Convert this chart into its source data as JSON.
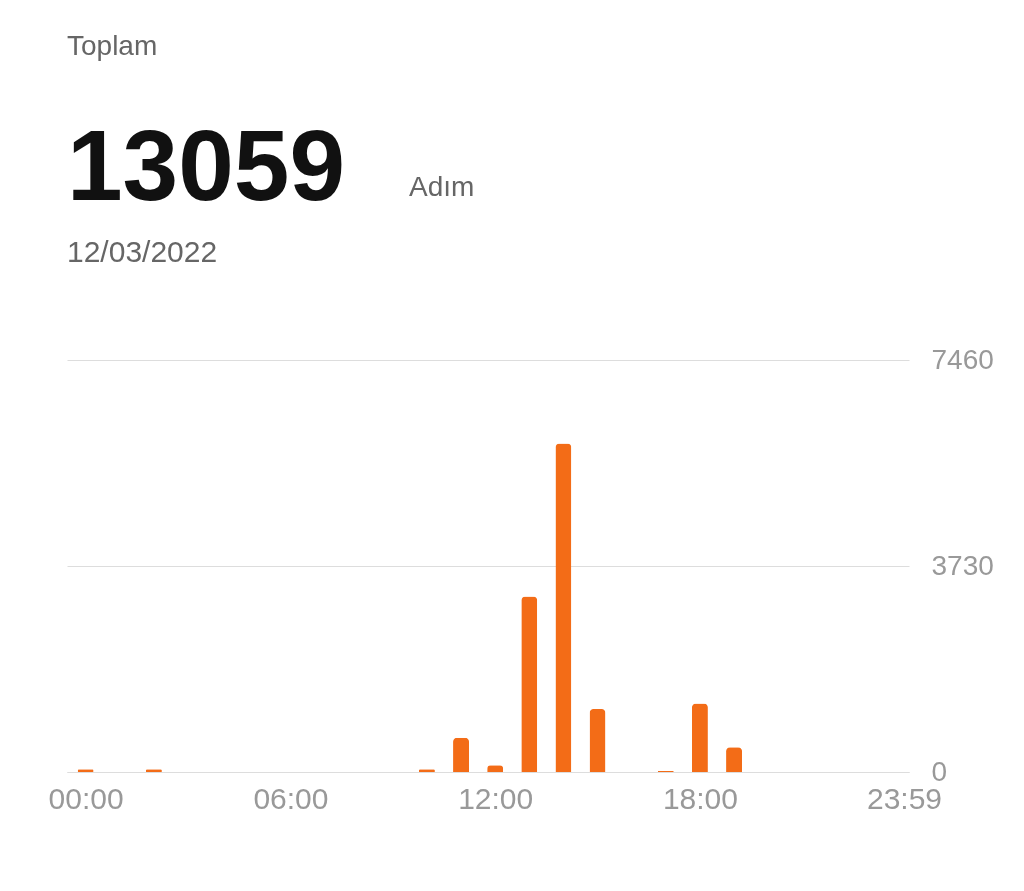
{
  "chart_data": {
    "type": "bar",
    "title": "Toplam",
    "annotations": [
      "13059",
      "Adım",
      "12/03/2022"
    ],
    "x": [
      0,
      2,
      10,
      11,
      12,
      13,
      14,
      15,
      17,
      18,
      19
    ],
    "series": [
      {
        "color": "#f36c17",
        "values": [
          50,
          50,
          50,
          620,
          120,
          3180,
          5950,
          1140,
          20,
          1240,
          450
        ]
      }
    ],
    "xlim": [
      -0.4,
      23.98
    ],
    "xticks": [
      {
        "value": 0,
        "label": "00:00"
      },
      {
        "value": 6,
        "label": "06:00"
      },
      {
        "value": 12,
        "label": "12:00"
      },
      {
        "value": 18,
        "label": "18:00"
      },
      {
        "value": 23.98,
        "label": "23:59"
      }
    ],
    "ylim": [
      0,
      7460
    ],
    "yticks": [
      0,
      3730,
      7460
    ],
    "grid": "y"
  }
}
